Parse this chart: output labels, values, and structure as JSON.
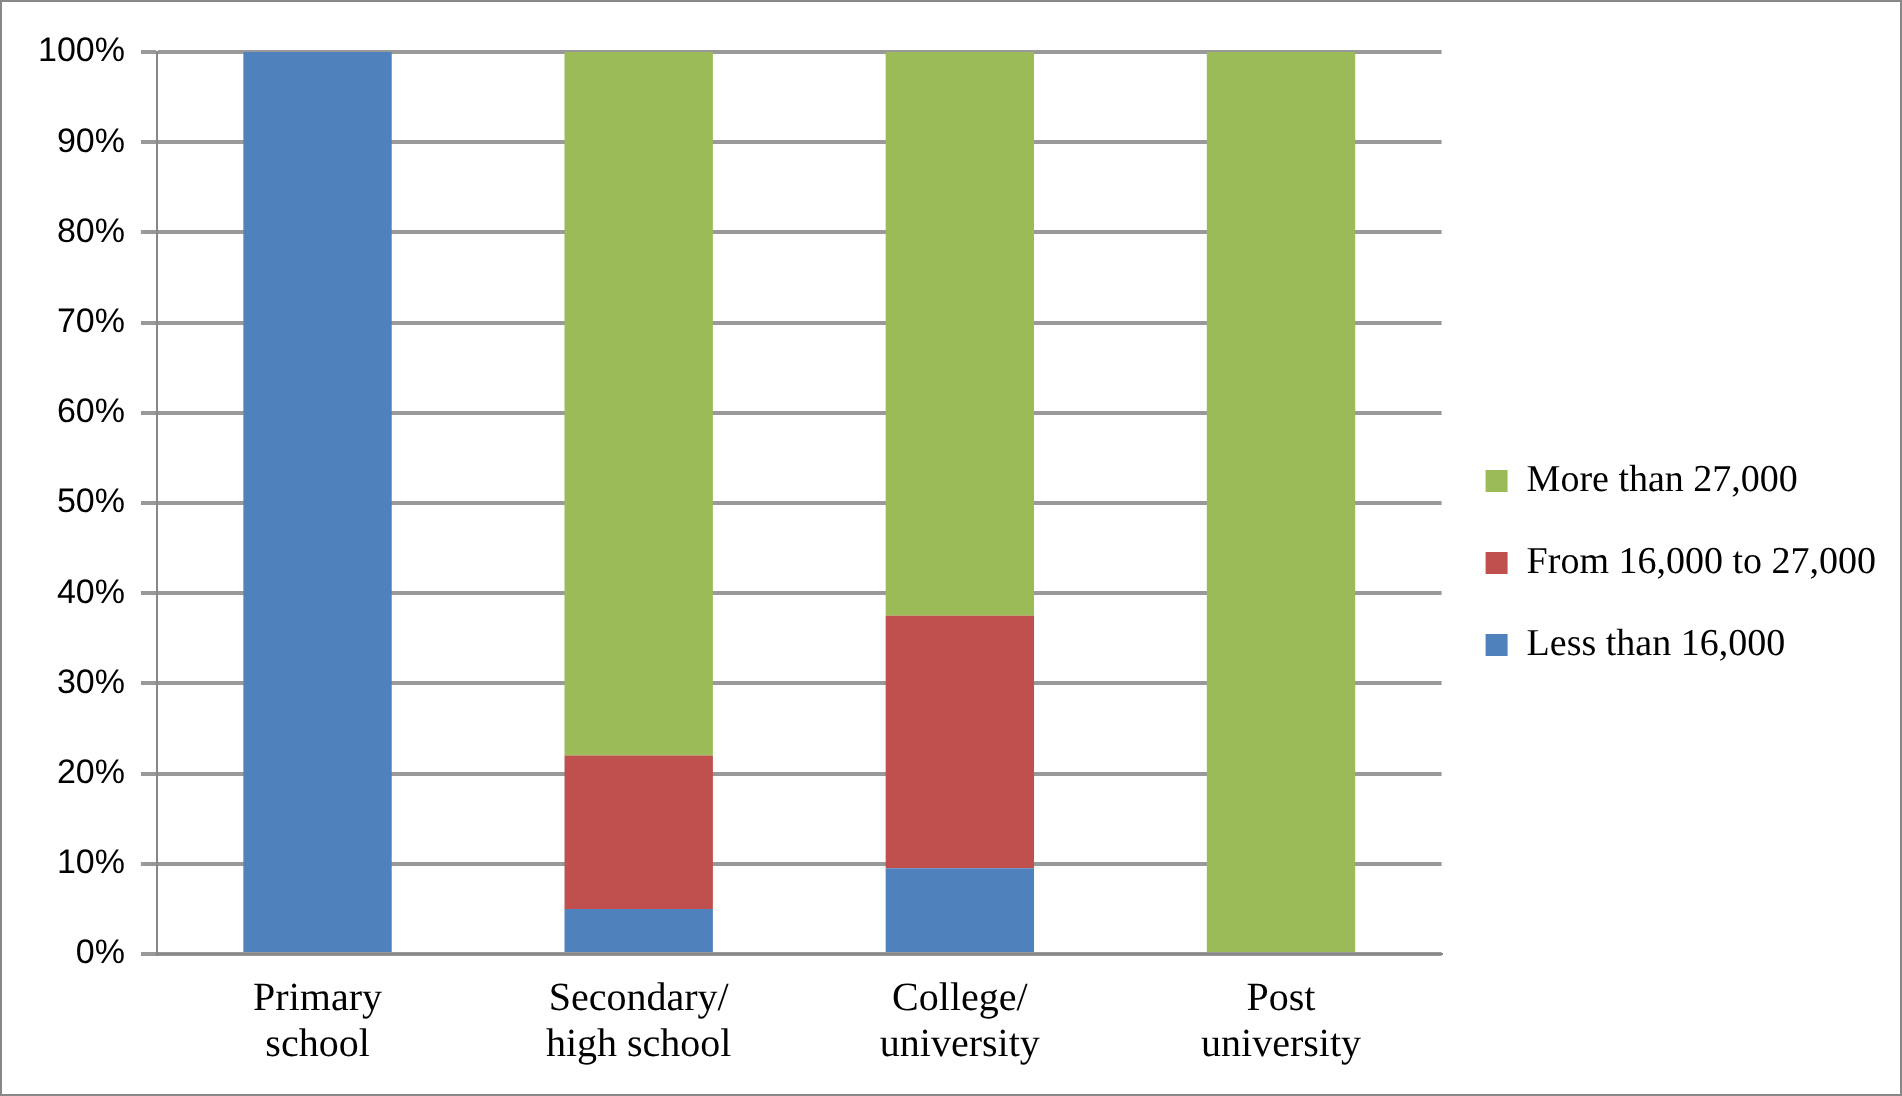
{
  "chart_data": {
    "type": "bar",
    "stacked": true,
    "categories": [
      "Primary school",
      "Secondary/ high school",
      "College/ university",
      "Post university"
    ],
    "series": [
      {
        "name": "Less than 16,000",
        "color": "#4f81bd",
        "values": [
          100,
          5,
          9.5,
          0
        ]
      },
      {
        "name": "From 16,000 to 27,000",
        "color": "#c0504d",
        "values": [
          0,
          17,
          28,
          0
        ]
      },
      {
        "name": "More than 27,000",
        "color": "#9bbb59",
        "values": [
          0,
          78,
          62.5,
          100
        ]
      }
    ],
    "ylim": [
      0,
      100
    ],
    "yticks": [
      {
        "value": 0,
        "label": "0%"
      },
      {
        "value": 10,
        "label": "10%"
      },
      {
        "value": 20,
        "label": "20%"
      },
      {
        "value": 30,
        "label": "30%"
      },
      {
        "value": 40,
        "label": "40%"
      },
      {
        "value": 50,
        "label": "50%"
      },
      {
        "value": 60,
        "label": "60%"
      },
      {
        "value": 70,
        "label": "70%"
      },
      {
        "value": 80,
        "label": "80%"
      },
      {
        "value": 90,
        "label": "90%"
      },
      {
        "value": 100,
        "label": "100%"
      }
    ],
    "grid": "y",
    "legend": "right"
  }
}
